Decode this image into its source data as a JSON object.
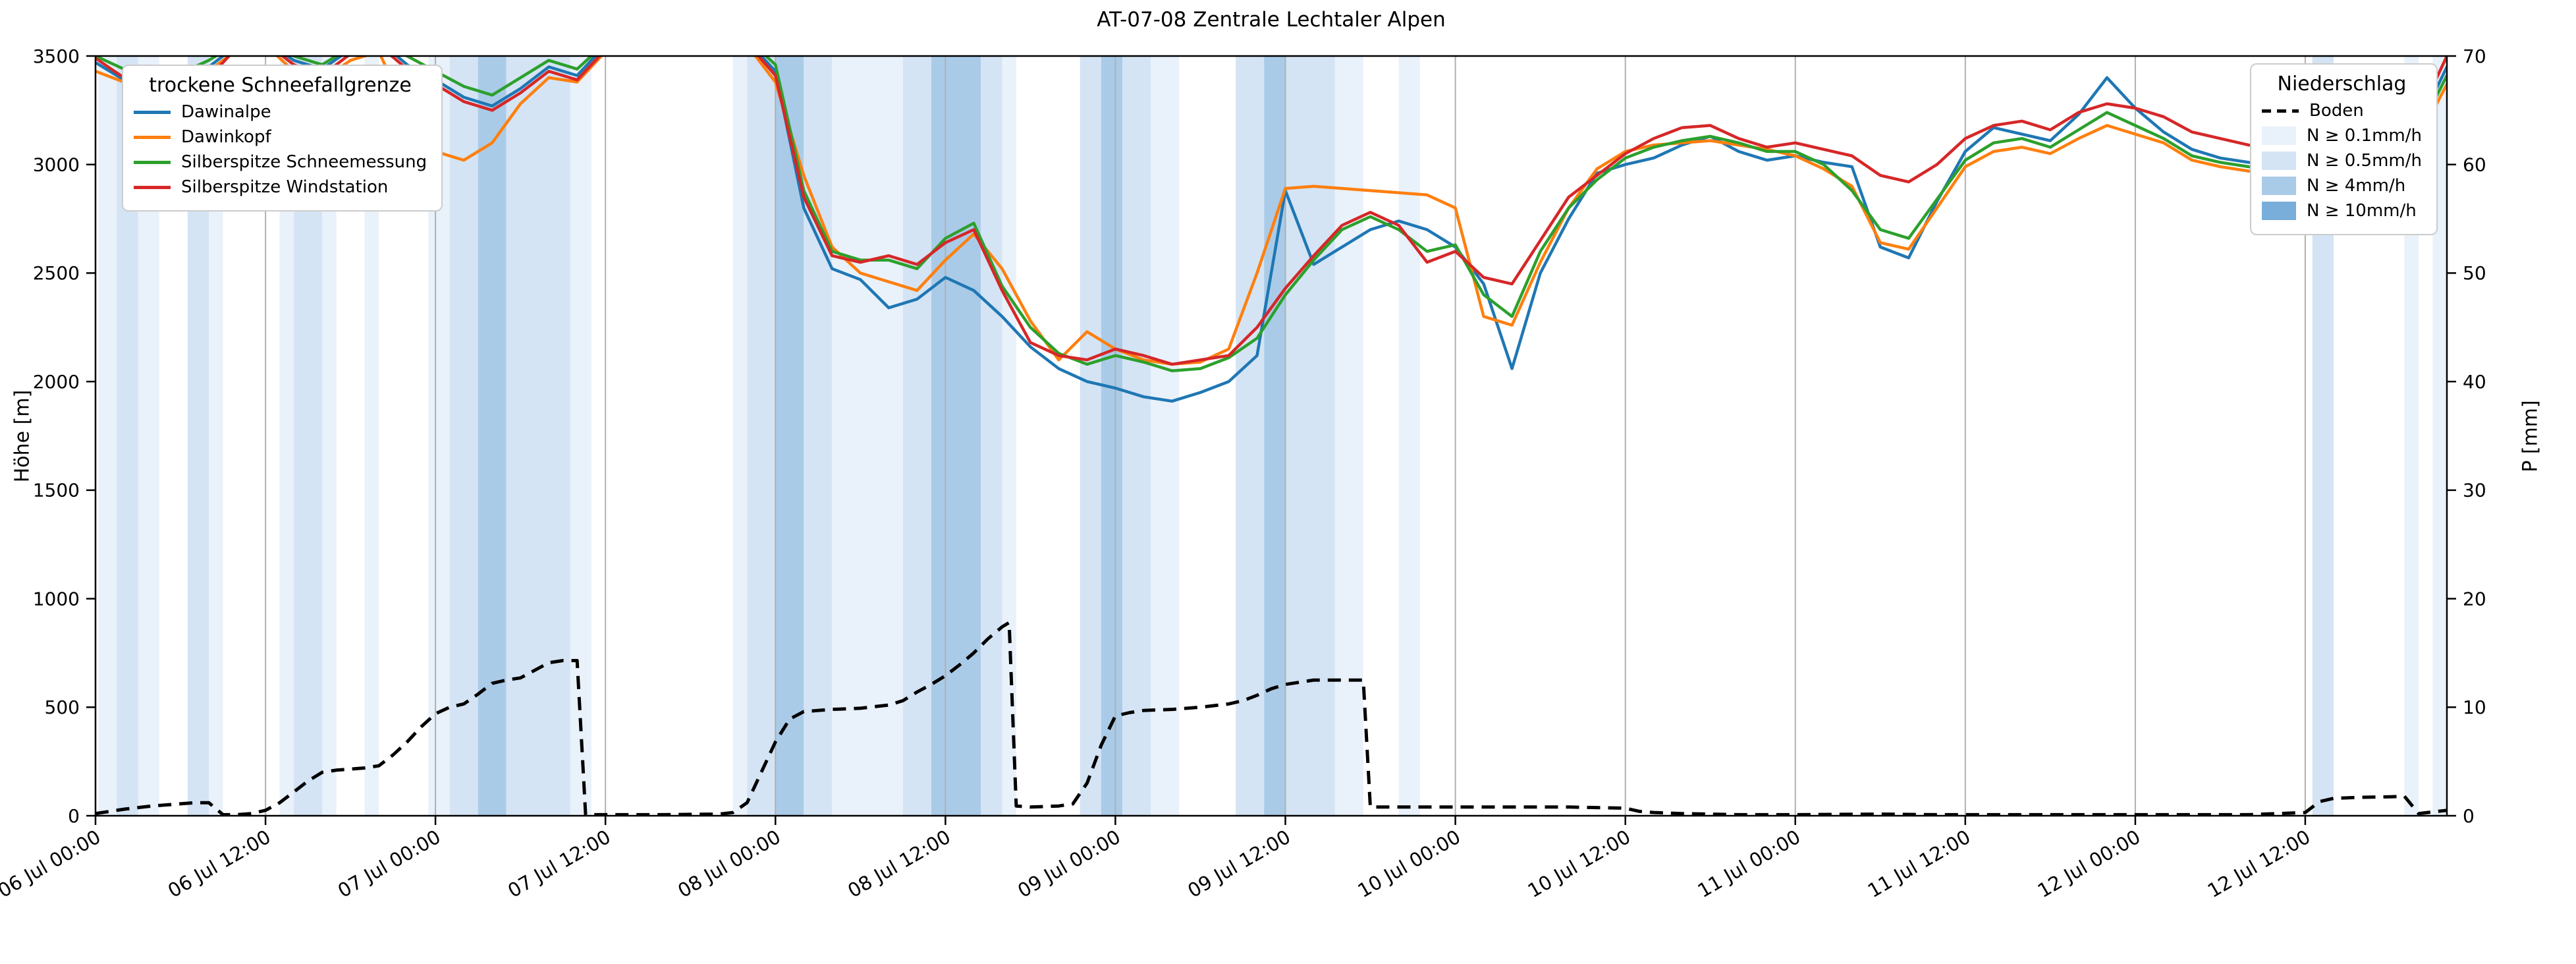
{
  "title": "AT-07-08 Zentrale Lechtaler Alpen",
  "left_axis": {
    "label": "Höhe [m]",
    "ticks": [
      0,
      500,
      1000,
      1500,
      2000,
      2500,
      3000,
      3500
    ]
  },
  "right_axis": {
    "label": "P [mm]",
    "ticks": [
      0,
      10,
      20,
      30,
      40,
      50,
      60,
      70
    ]
  },
  "x_axis": {
    "tick_labels": [
      "06 Jul 00:00",
      "06 Jul 12:00",
      "07 Jul 00:00",
      "07 Jul 12:00",
      "08 Jul 00:00",
      "08 Jul 12:00",
      "09 Jul 00:00",
      "09 Jul 12:00",
      "10 Jul 00:00",
      "10 Jul 12:00",
      "11 Jul 00:00",
      "11 Jul 12:00",
      "12 Jul 00:00",
      "12 Jul 12:00"
    ],
    "tick_hours": [
      0,
      12,
      24,
      36,
      48,
      60,
      72,
      84,
      96,
      108,
      120,
      132,
      144,
      156
    ]
  },
  "legend_snowline": {
    "title": "trockene Schneefallgrenze",
    "entries": [
      {
        "label": "Dawinalpe",
        "color": "#1f77b4"
      },
      {
        "label": "Dawinkopf",
        "color": "#ff7f0e"
      },
      {
        "label": "Silberspitze Schneemessung",
        "color": "#2ca02c"
      },
      {
        "label": "Silberspitze Windstation",
        "color": "#d62728"
      }
    ]
  },
  "legend_precip": {
    "title": "Niederschlag",
    "entries": [
      {
        "label": "Boden",
        "type": "dashed",
        "color": "#000000"
      },
      {
        "label": "N ≥ 0.1mm/h",
        "type": "patch",
        "color": "#e9f1fa"
      },
      {
        "label": "N ≥ 0.5mm/h",
        "type": "patch",
        "color": "#d4e4f4"
      },
      {
        "label": "N ≥ 4mm/h",
        "type": "patch",
        "color": "#aacbe8"
      },
      {
        "label": "N ≥ 10mm/h",
        "type": "patch",
        "color": "#79aeda"
      }
    ]
  },
  "chart_data": {
    "type": "line",
    "title": "AT-07-08 Zentrale Lechtaler Alpen",
    "xlabel": "",
    "ylabel_left": "Höhe [m]",
    "ylabel_right": "P [mm]",
    "x_unit": "hours since 06 Jul 00:00",
    "xlim": [
      0,
      166
    ],
    "ylim_left": [
      0,
      3500
    ],
    "ylim_right": [
      0,
      70
    ],
    "grid": "vertical-only",
    "x": [
      0,
      2,
      4,
      6,
      8,
      10,
      12,
      14,
      16,
      18,
      20,
      22,
      24,
      26,
      28,
      30,
      32,
      34,
      36,
      38,
      40,
      42,
      44,
      46,
      48,
      50,
      52,
      54,
      56,
      58,
      60,
      62,
      64,
      66,
      68,
      70,
      72,
      74,
      76,
      78,
      80,
      82,
      84,
      86,
      88,
      90,
      92,
      94,
      96,
      98,
      100,
      102,
      104,
      106,
      108,
      110,
      112,
      114,
      116,
      118,
      120,
      122,
      124,
      126,
      128,
      130,
      132,
      134,
      136,
      138,
      140,
      142,
      144,
      146,
      148,
      150,
      152,
      154,
      156,
      158,
      160,
      162,
      164,
      166
    ],
    "series": [
      {
        "name": "Dawinalpe",
        "color": "#1f77b4",
        "axis": "left",
        "values": [
          3470,
          3390,
          3350,
          3370,
          3450,
          3550,
          3570,
          3480,
          3440,
          3530,
          3570,
          3460,
          3390,
          3310,
          3270,
          3350,
          3450,
          3410,
          3550,
          3610,
          3650,
          3640,
          3610,
          3570,
          3430,
          2800,
          2520,
          2470,
          2340,
          2380,
          2480,
          2420,
          2300,
          2160,
          2060,
          2000,
          1970,
          1930,
          1910,
          1950,
          2000,
          2120,
          2880,
          2540,
          2620,
          2700,
          2740,
          2700,
          2620,
          2450,
          2060,
          2500,
          2750,
          2960,
          3000,
          3030,
          3090,
          3130,
          3060,
          3020,
          3040,
          3010,
          2990,
          2620,
          2570,
          2830,
          3060,
          3170,
          3140,
          3110,
          3230,
          3400,
          3260,
          3150,
          3070,
          3030,
          3010,
          3000,
          3030,
          3010,
          2990,
          3060,
          3180,
          3450
        ]
      },
      {
        "name": "Dawinkopf",
        "color": "#ff7f0e",
        "axis": "left",
        "values": [
          3430,
          3380,
          3330,
          3360,
          3430,
          3530,
          3550,
          3430,
          3390,
          3480,
          3520,
          3240,
          3060,
          3020,
          3100,
          3280,
          3400,
          3380,
          3520,
          3590,
          3630,
          3620,
          3590,
          3550,
          3380,
          2950,
          2620,
          2500,
          2460,
          2420,
          2560,
          2680,
          2520,
          2280,
          2100,
          2230,
          2150,
          2100,
          2080,
          2090,
          2150,
          2500,
          2890,
          2900,
          2890,
          2880,
          2870,
          2860,
          2800,
          2300,
          2260,
          2550,
          2800,
          2980,
          3060,
          3090,
          3100,
          3110,
          3090,
          3070,
          3040,
          2980,
          2900,
          2640,
          2610,
          2800,
          2990,
          3060,
          3080,
          3050,
          3120,
          3180,
          3140,
          3100,
          3020,
          2990,
          2970,
          2960,
          2990,
          2970,
          2960,
          3020,
          3120,
          3370
        ]
      },
      {
        "name": "Silberspitze Schneemessung",
        "color": "#2ca02c",
        "axis": "left",
        "values": [
          3500,
          3440,
          3400,
          3420,
          3480,
          3560,
          3580,
          3500,
          3460,
          3540,
          3580,
          3500,
          3430,
          3360,
          3320,
          3400,
          3480,
          3440,
          3560,
          3620,
          3660,
          3650,
          3620,
          3580,
          3460,
          2880,
          2600,
          2560,
          2560,
          2520,
          2660,
          2730,
          2440,
          2250,
          2130,
          2080,
          2120,
          2090,
          2050,
          2060,
          2110,
          2200,
          2400,
          2560,
          2700,
          2760,
          2700,
          2600,
          2630,
          2400,
          2300,
          2600,
          2800,
          2930,
          3030,
          3080,
          3110,
          3130,
          3100,
          3060,
          3060,
          3000,
          2880,
          2700,
          2660,
          2840,
          3020,
          3100,
          3120,
          3080,
          3160,
          3240,
          3180,
          3120,
          3040,
          3010,
          2990,
          2980,
          3010,
          2990,
          2970,
          3040,
          3150,
          3410
        ]
      },
      {
        "name": "Silberspitze Windstation",
        "color": "#d62728",
        "axis": "left",
        "values": [
          3490,
          3400,
          3310,
          3270,
          3400,
          3540,
          3560,
          3460,
          3410,
          3510,
          3550,
          3440,
          3370,
          3290,
          3250,
          3330,
          3430,
          3390,
          3530,
          3600,
          3640,
          3630,
          3600,
          3560,
          3410,
          2850,
          2580,
          2550,
          2580,
          2540,
          2640,
          2700,
          2420,
          2180,
          2120,
          2100,
          2150,
          2120,
          2080,
          2100,
          2120,
          2250,
          2430,
          2580,
          2720,
          2780,
          2720,
          2550,
          2600,
          2480,
          2450,
          2650,
          2850,
          2950,
          3050,
          3120,
          3170,
          3180,
          3120,
          3080,
          3100,
          3070,
          3040,
          2950,
          2920,
          3000,
          3120,
          3180,
          3200,
          3160,
          3240,
          3280,
          3260,
          3220,
          3150,
          3120,
          3090,
          3080,
          3150,
          3120,
          3060,
          3100,
          3220,
          3500
        ]
      }
    ],
    "boden": {
      "name": "Boden",
      "color": "#000000",
      "axis": "right",
      "dash": true,
      "x": [
        0,
        2,
        4,
        6,
        7,
        8,
        9,
        10,
        11,
        12,
        13,
        14,
        15,
        16,
        17,
        18,
        19,
        20,
        21,
        22,
        23,
        24,
        25,
        26,
        27,
        28,
        29,
        30,
        31,
        32,
        33,
        34,
        34.6,
        36,
        40,
        44,
        45,
        46,
        47,
        48,
        49,
        50,
        52,
        54,
        56,
        57,
        58,
        59,
        60,
        61,
        62,
        63,
        64,
        64.5,
        65,
        66,
        67,
        68,
        69,
        70,
        71,
        72,
        73,
        74,
        76,
        78,
        80,
        81,
        82,
        83,
        84,
        85,
        86,
        88,
        89.5,
        90,
        92,
        96,
        100,
        104,
        108,
        109,
        110,
        112,
        116,
        120,
        126,
        130,
        136,
        142,
        148,
        152,
        156,
        157,
        158,
        160,
        162,
        163,
        164,
        165,
        166
      ],
      "values": [
        0.2,
        0.6,
        0.9,
        1.1,
        1.2,
        1.2,
        0.1,
        0.1,
        0.2,
        0.5,
        1.2,
        2.2,
        3.2,
        4.0,
        4.2,
        4.3,
        4.4,
        4.6,
        5.6,
        6.8,
        8.2,
        9.4,
        10.0,
        10.3,
        11.2,
        12.2,
        12.5,
        12.7,
        13.4,
        14.1,
        14.3,
        14.3,
        0.1,
        0.1,
        0.1,
        0.15,
        0.3,
        1.2,
        4.0,
        6.8,
        8.9,
        9.6,
        9.8,
        9.9,
        10.2,
        10.6,
        11.4,
        12.1,
        12.9,
        13.9,
        15.0,
        16.3,
        17.4,
        17.8,
        0.9,
        0.8,
        0.85,
        0.9,
        1.1,
        3.0,
        6.5,
        9.2,
        9.5,
        9.7,
        9.8,
        10.0,
        10.3,
        10.6,
        11.1,
        11.7,
        12.1,
        12.3,
        12.5,
        12.5,
        12.5,
        0.8,
        0.8,
        0.8,
        0.8,
        0.8,
        0.7,
        0.4,
        0.3,
        0.2,
        0.1,
        0.1,
        0.15,
        0.1,
        0.1,
        0.1,
        0.1,
        0.1,
        0.3,
        1.3,
        1.6,
        1.7,
        1.75,
        1.8,
        0.2,
        0.35,
        0.5
      ]
    },
    "precip_bands": [
      {
        "s": 0.2,
        "e": 1.5,
        "l": 1
      },
      {
        "s": 1.5,
        "e": 3,
        "l": 2
      },
      {
        "s": 3,
        "e": 4.5,
        "l": 1
      },
      {
        "s": 6.5,
        "e": 8,
        "l": 2
      },
      {
        "s": 8,
        "e": 9,
        "l": 1
      },
      {
        "s": 13,
        "e": 14,
        "l": 1
      },
      {
        "s": 14,
        "e": 16,
        "l": 2
      },
      {
        "s": 16,
        "e": 17,
        "l": 1
      },
      {
        "s": 19,
        "e": 20,
        "l": 1
      },
      {
        "s": 23.5,
        "e": 25,
        "l": 1
      },
      {
        "s": 25,
        "e": 27,
        "l": 2
      },
      {
        "s": 27,
        "e": 29,
        "l": 3
      },
      {
        "s": 29,
        "e": 33.5,
        "l": 2
      },
      {
        "s": 33.5,
        "e": 35,
        "l": 1
      },
      {
        "s": 45,
        "e": 46,
        "l": 1
      },
      {
        "s": 46,
        "e": 48,
        "l": 2
      },
      {
        "s": 48,
        "e": 50,
        "l": 3
      },
      {
        "s": 50,
        "e": 52,
        "l": 2
      },
      {
        "s": 52,
        "e": 57,
        "l": 1
      },
      {
        "s": 57,
        "e": 59,
        "l": 2
      },
      {
        "s": 59,
        "e": 62.5,
        "l": 3
      },
      {
        "s": 62.5,
        "e": 64,
        "l": 2
      },
      {
        "s": 64,
        "e": 65,
        "l": 1
      },
      {
        "s": 69.5,
        "e": 71,
        "l": 2
      },
      {
        "s": 71,
        "e": 72.5,
        "l": 3
      },
      {
        "s": 72.5,
        "e": 74.5,
        "l": 2
      },
      {
        "s": 74.5,
        "e": 76.5,
        "l": 1
      },
      {
        "s": 80.5,
        "e": 82.5,
        "l": 2
      },
      {
        "s": 82.5,
        "e": 84,
        "l": 3
      },
      {
        "s": 84,
        "e": 87.5,
        "l": 2
      },
      {
        "s": 87.5,
        "e": 89.5,
        "l": 1
      },
      {
        "s": 92,
        "e": 93.5,
        "l": 1
      },
      {
        "s": 156.5,
        "e": 158,
        "l": 2
      },
      {
        "s": 163,
        "e": 164,
        "l": 1
      },
      {
        "s": 165,
        "e": 166,
        "l": 1
      }
    ],
    "band_colors": {
      "1": "#e9f1fa",
      "2": "#d4e4f4",
      "3": "#aacbe8",
      "4": "#79aeda"
    },
    "band_levels_legend": [
      "N ≥ 0.1mm/h",
      "N ≥ 0.5mm/h",
      "N ≥ 4mm/h",
      "N ≥ 10mm/h"
    ],
    "legend_position_snowline": "upper left",
    "legend_position_precip": "upper right"
  }
}
